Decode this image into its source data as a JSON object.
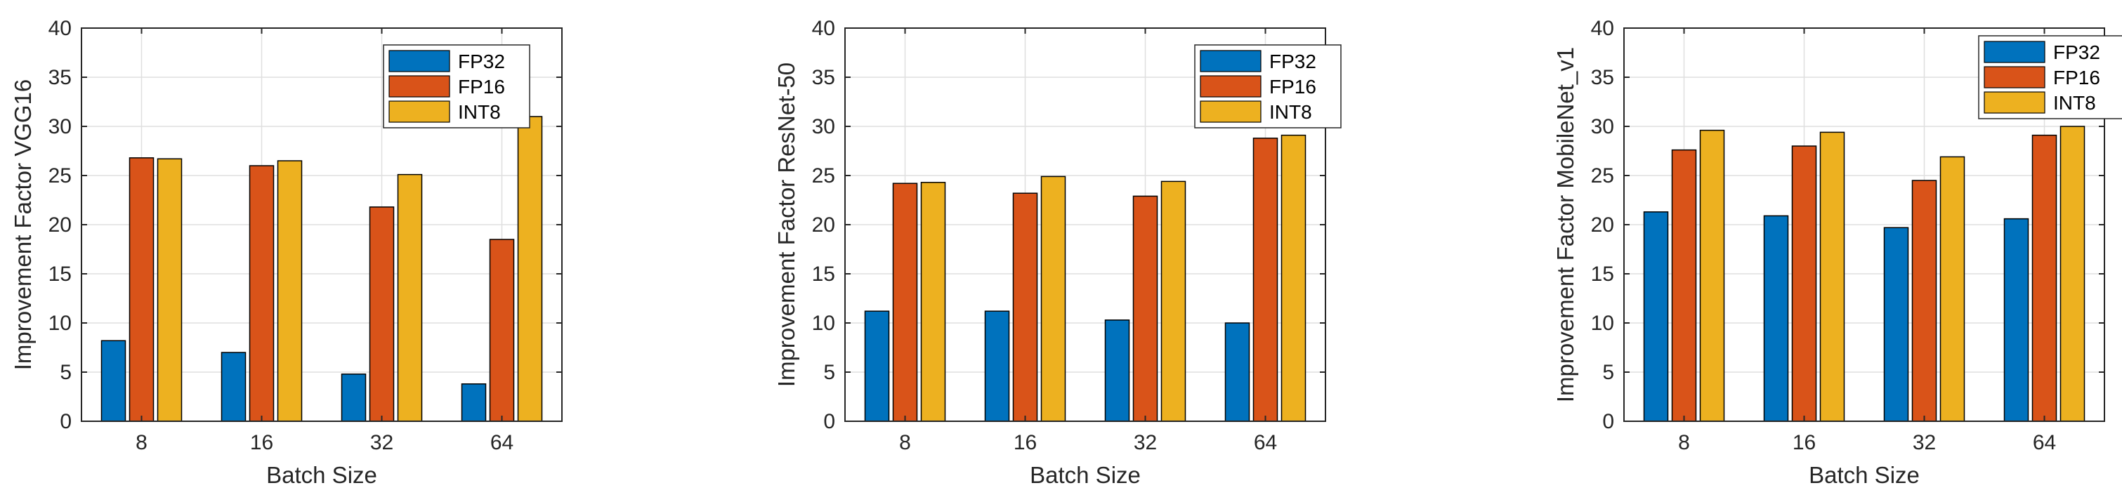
{
  "colors": {
    "FP32": "#0072BD",
    "FP16": "#D95319",
    "INT8": "#EDB120"
  },
  "chart_data": [
    {
      "type": "bar",
      "title": "",
      "xlabel": "Batch Size",
      "ylabel": "Improvement Factor VGG16",
      "categories": [
        "8",
        "16",
        "32",
        "64"
      ],
      "ylim": [
        0,
        40
      ],
      "yticks": [
        "0",
        "5",
        "10",
        "15",
        "20",
        "25",
        "30",
        "35",
        "40"
      ],
      "grid": true,
      "legend_position": "top-right",
      "series": [
        {
          "name": "FP32",
          "values": [
            8.2,
            7.0,
            4.8,
            3.8
          ]
        },
        {
          "name": "FP16",
          "values": [
            26.8,
            26.0,
            21.8,
            18.5
          ]
        },
        {
          "name": "INT8",
          "values": [
            26.7,
            26.5,
            25.1,
            31.0
          ]
        }
      ]
    },
    {
      "type": "bar",
      "title": "",
      "xlabel": "Batch Size",
      "ylabel": "Improvement Factor ResNet-50",
      "categories": [
        "8",
        "16",
        "32",
        "64"
      ],
      "ylim": [
        0,
        40
      ],
      "yticks": [
        "0",
        "5",
        "10",
        "15",
        "20",
        "25",
        "30",
        "35",
        "40"
      ],
      "grid": true,
      "legend_position": "top-right",
      "series": [
        {
          "name": "FP32",
          "values": [
            11.2,
            11.2,
            10.3,
            10.0
          ]
        },
        {
          "name": "FP16",
          "values": [
            24.2,
            23.2,
            22.9,
            28.8
          ]
        },
        {
          "name": "INT8",
          "values": [
            24.3,
            24.9,
            24.4,
            29.1
          ]
        }
      ]
    },
    {
      "type": "bar",
      "title": "",
      "xlabel": "Batch Size",
      "ylabel": "Improvement Factor MobileNet_v1",
      "categories": [
        "8",
        "16",
        "32",
        "64"
      ],
      "ylim": [
        0,
        40
      ],
      "yticks": [
        "0",
        "5",
        "10",
        "15",
        "20",
        "25",
        "30",
        "35",
        "40"
      ],
      "grid": true,
      "legend_position": "top-right",
      "series": [
        {
          "name": "FP32",
          "values": [
            21.3,
            20.9,
            19.7,
            20.6
          ]
        },
        {
          "name": "FP16",
          "values": [
            27.6,
            28.0,
            24.5,
            29.1
          ]
        },
        {
          "name": "INT8",
          "values": [
            29.6,
            29.4,
            26.9,
            30.0
          ]
        }
      ]
    }
  ]
}
